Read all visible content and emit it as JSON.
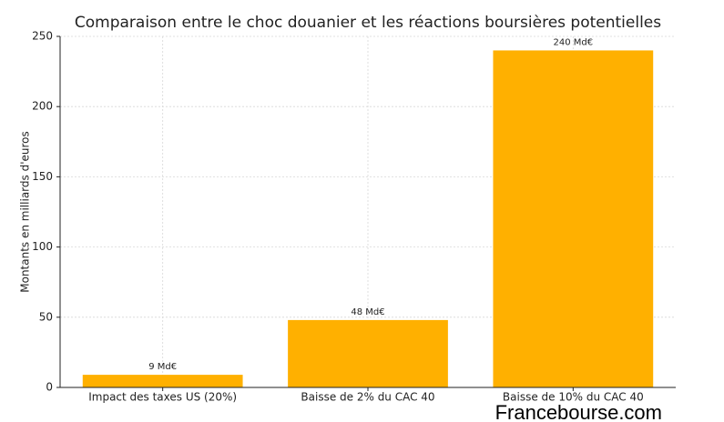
{
  "chart_data": {
    "type": "bar",
    "title": "Comparaison entre le choc douanier et les réactions boursières potentielles",
    "ylabel": "Montants en milliards d'euros",
    "categories": [
      "Impact des taxes US (20%)",
      "Baisse de 2% du CAC 40",
      "Baisse de 10% du CAC 40"
    ],
    "values": [
      9,
      48,
      240
    ],
    "value_labels": [
      "9 Md€",
      "48 Md€",
      "240 Md€"
    ],
    "color": "#ffb000",
    "ylim": [
      0,
      250
    ],
    "yticks": [
      0,
      50,
      100,
      150,
      200,
      250
    ],
    "grid": true
  },
  "watermark": "Francebourse.com"
}
